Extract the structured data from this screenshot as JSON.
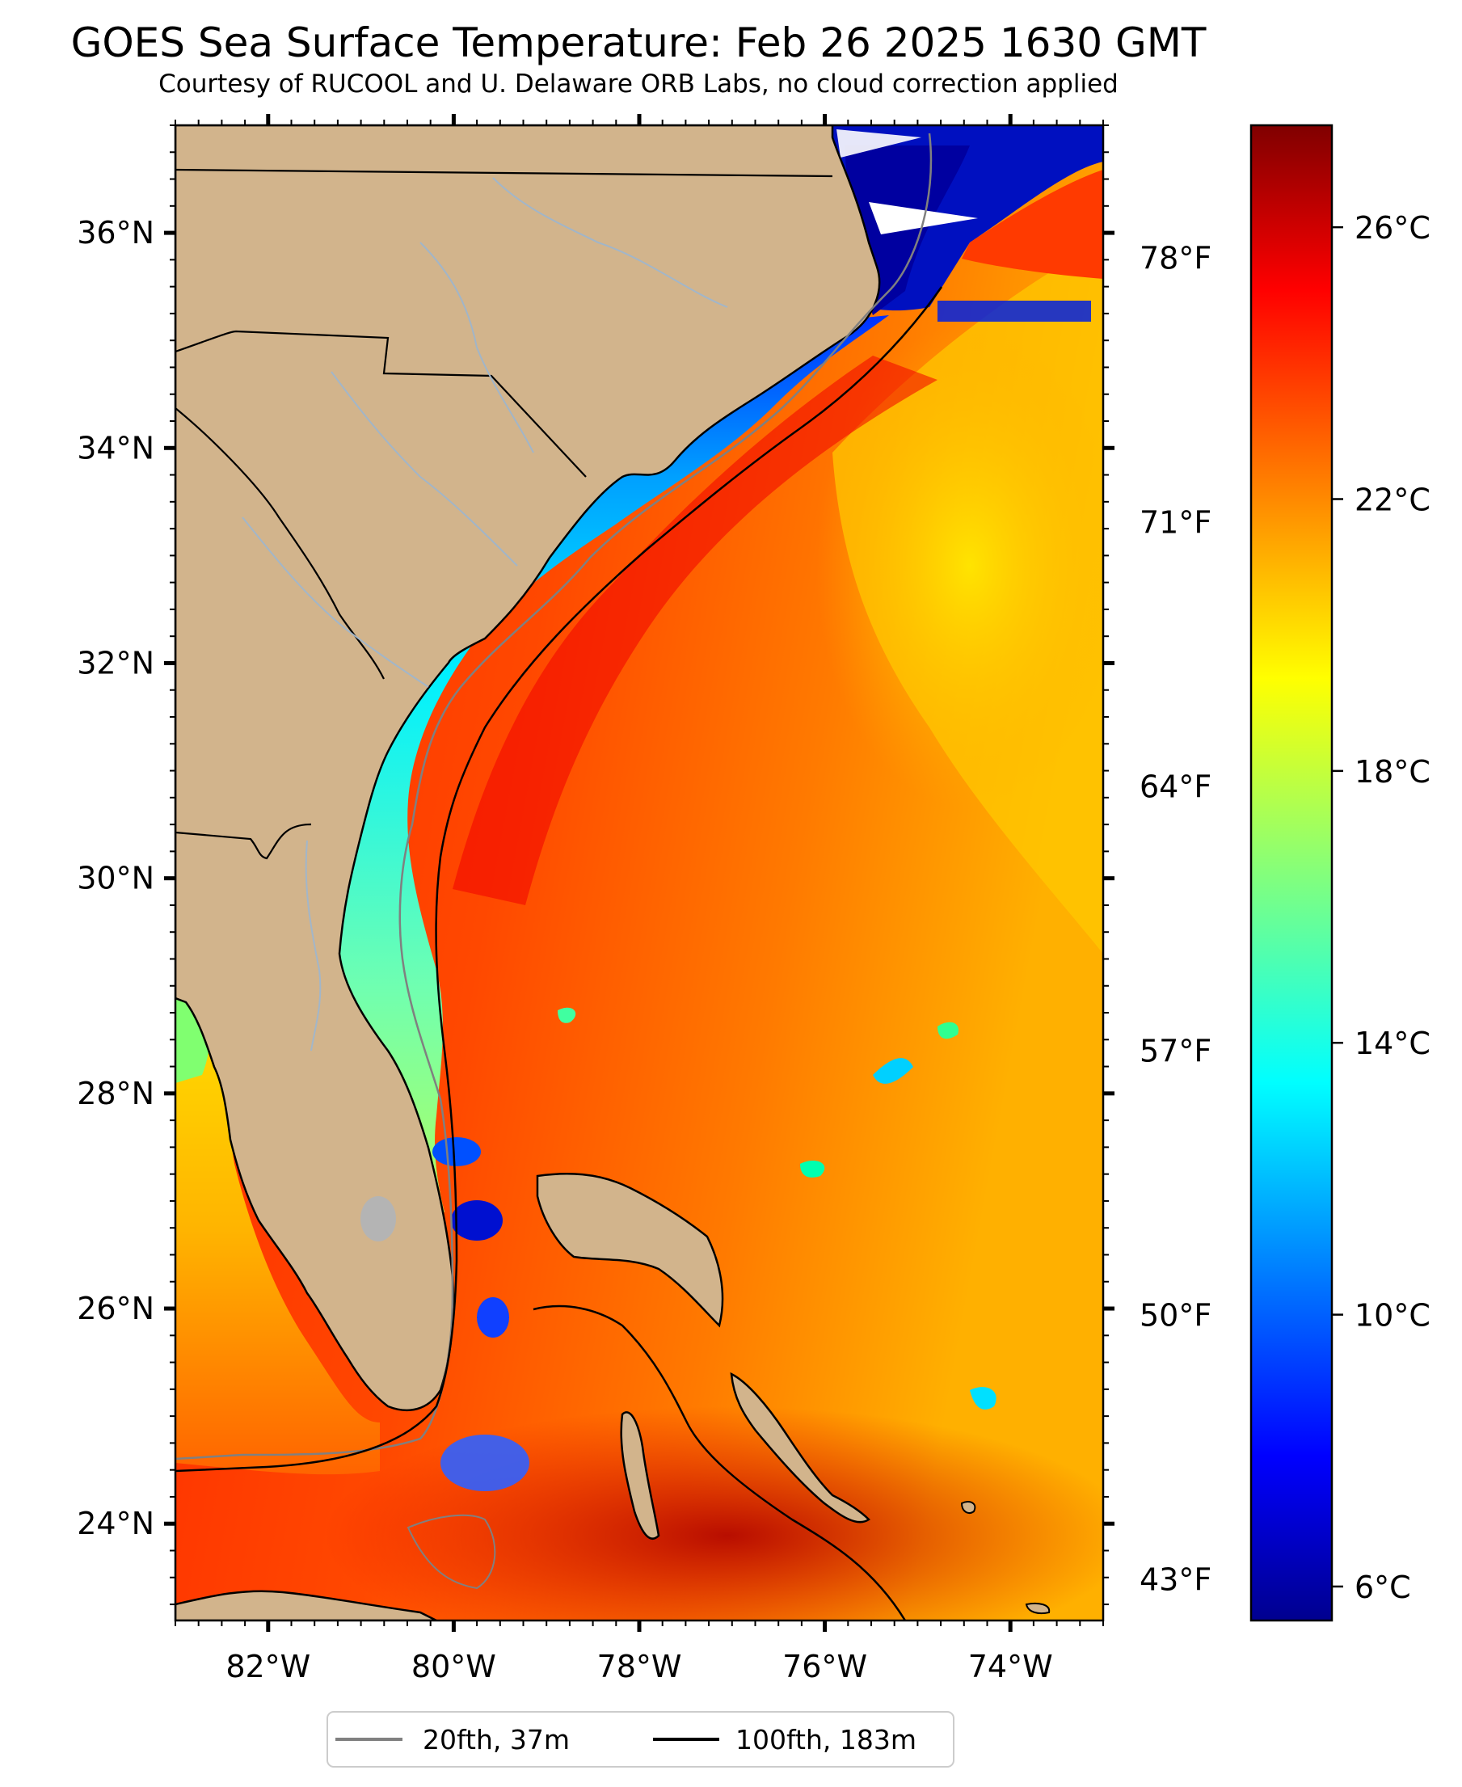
{
  "title": "GOES Sea Surface Temperature: Feb 26 2025 1630 GMT",
  "subtitle": "Courtesy of RUCOOL and U. Delaware ORB Labs, no cloud correction applied",
  "map": {
    "lon_range": [
      -83,
      -73
    ],
    "lat_range": [
      23.1,
      37.0
    ],
    "lon_ticks": [
      {
        "value": -82,
        "label": "82°W"
      },
      {
        "value": -80,
        "label": "80°W"
      },
      {
        "value": -78,
        "label": "78°W"
      },
      {
        "value": -76,
        "label": "76°W"
      },
      {
        "value": -74,
        "label": "74°W"
      }
    ],
    "lat_ticks": [
      {
        "value": 24,
        "label": "24°N"
      },
      {
        "value": 26,
        "label": "26°N"
      },
      {
        "value": 28,
        "label": "28°N"
      },
      {
        "value": 30,
        "label": "30°N"
      },
      {
        "value": 32,
        "label": "32°N"
      },
      {
        "value": 34,
        "label": "34°N"
      },
      {
        "value": 36,
        "label": "36°N"
      }
    ],
    "colors": {
      "land": "#d2b48c",
      "rivers": "#9fb6cc",
      "lakes": "#b4b4b4",
      "isobath_20fth": "#808080",
      "isobath_100fth": "#000000"
    }
  },
  "colorbar": {
    "range_c": [
      5.5,
      27.5
    ],
    "celsius_ticks": [
      {
        "value": 6,
        "label": "6°C"
      },
      {
        "value": 10,
        "label": "10°C"
      },
      {
        "value": 14,
        "label": "14°C"
      },
      {
        "value": 18,
        "label": "18°C"
      },
      {
        "value": 22,
        "label": "22°C"
      },
      {
        "value": 26,
        "label": "26°C"
      }
    ],
    "fahrenheit_ticks": [
      {
        "value": 43,
        "label": "43°F"
      },
      {
        "value": 50,
        "label": "50°F"
      },
      {
        "value": 57,
        "label": "57°F"
      },
      {
        "value": 64,
        "label": "64°F"
      },
      {
        "value": 71,
        "label": "71°F"
      },
      {
        "value": 78,
        "label": "78°F"
      }
    ],
    "colormap": "jet",
    "colormap_stops": [
      "#00008f",
      "#0000ff",
      "#00ffff",
      "#ffff00",
      "#ff0000",
      "#800000"
    ]
  },
  "legend": {
    "placement": "bottom-center",
    "items": [
      {
        "label": "20fth, 37m",
        "color": "#808080"
      },
      {
        "label": "100fth, 183m",
        "color": "#000000"
      }
    ]
  }
}
